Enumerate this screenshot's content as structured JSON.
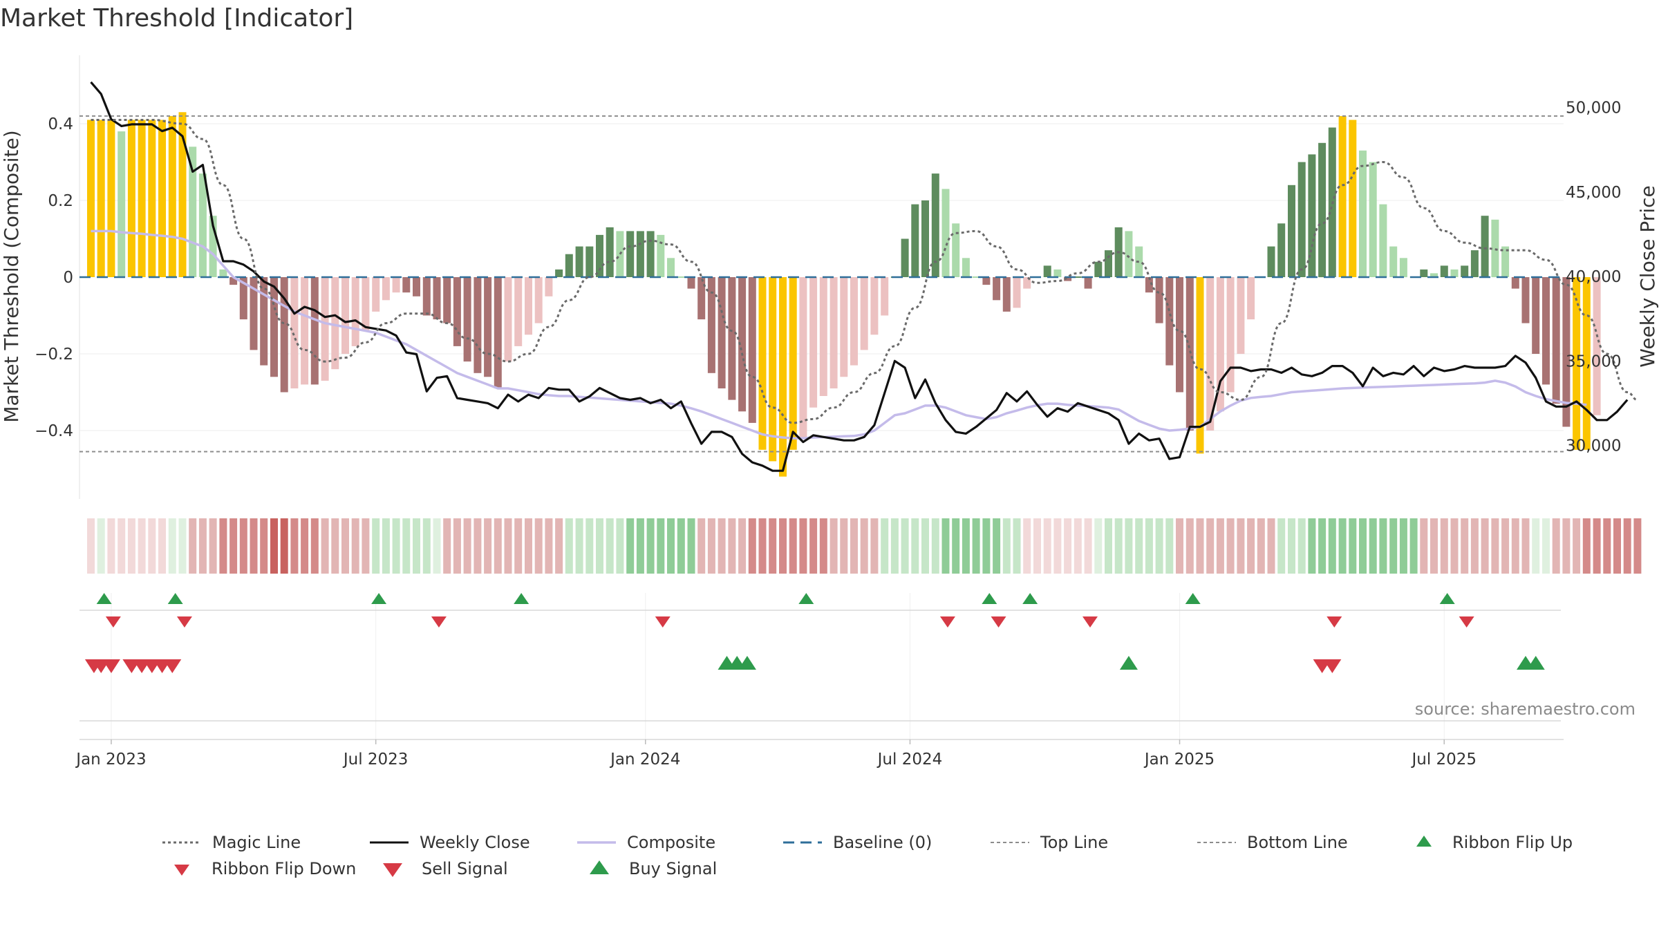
{
  "chart_data": {
    "type": "bar",
    "title": "Market Threshold [Indicator]",
    "ylabel": "Market Threshold (Composite)",
    "y2label": "Weekly Close Price",
    "ylim": [
      -0.58,
      0.58
    ],
    "y2lim": [
      27000,
      53500
    ],
    "x_range_weeks": [
      0,
      144
    ],
    "yticks": [
      {
        "value": 0.4,
        "label": "0.4"
      },
      {
        "value": 0.2,
        "label": "0.2"
      },
      {
        "value": 0,
        "label": "0"
      },
      {
        "value": -0.2,
        "label": "−0.2"
      },
      {
        "value": -0.4,
        "label": "−0.4"
      }
    ],
    "y2ticks": [
      {
        "value": 50000,
        "label": "50,000"
      },
      {
        "value": 45000,
        "label": "45,000"
      },
      {
        "value": 40000,
        "label": "40,000"
      },
      {
        "value": 35000,
        "label": "35,000"
      },
      {
        "value": 30000,
        "label": "30,000"
      }
    ],
    "xticks": [
      {
        "week": 2,
        "label": "Jan 2023"
      },
      {
        "week": 28,
        "label": "Jul 2023"
      },
      {
        "week": 54.5,
        "label": "Jan 2024"
      },
      {
        "week": 80.5,
        "label": "Jul 2024"
      },
      {
        "week": 107,
        "label": "Jan 2025"
      },
      {
        "week": 133,
        "label": "Jul 2025"
      }
    ],
    "top_line": 0.42,
    "bottom_line": -0.455,
    "composite_bars": [
      0.41,
      0.41,
      0.41,
      0.38,
      0.41,
      0.41,
      0.41,
      0.41,
      0.42,
      0.43,
      0.34,
      0.27,
      0.16,
      0.02,
      -0.02,
      -0.11,
      -0.19,
      -0.23,
      -0.26,
      -0.3,
      -0.29,
      -0.28,
      -0.28,
      -0.27,
      -0.24,
      -0.2,
      -0.18,
      -0.14,
      -0.09,
      -0.06,
      -0.04,
      -0.04,
      -0.05,
      -0.1,
      -0.11,
      -0.12,
      -0.18,
      -0.22,
      -0.25,
      -0.26,
      -0.29,
      -0.22,
      -0.18,
      -0.15,
      -0.12,
      -0.05,
      0.02,
      0.06,
      0.08,
      0.08,
      0.11,
      0.13,
      0.12,
      0.12,
      0.12,
      0.12,
      0.11,
      0.05,
      0,
      -0.03,
      -0.11,
      -0.25,
      -0.29,
      -0.32,
      -0.35,
      -0.38,
      -0.45,
      -0.48,
      -0.52,
      -0.45,
      -0.42,
      -0.34,
      -0.31,
      -0.29,
      -0.26,
      -0.23,
      -0.19,
      -0.15,
      -0.1,
      0,
      0.1,
      0.19,
      0.2,
      0.27,
      0.23,
      0.14,
      0.05,
      0,
      -0.02,
      -0.06,
      -0.09,
      -0.08,
      -0.03,
      0,
      0.03,
      0.02,
      -0.01,
      0,
      -0.03,
      0.04,
      0.07,
      0.13,
      0.12,
      0.08,
      -0.04,
      -0.12,
      -0.23,
      -0.3,
      -0.4,
      -0.46,
      -0.4,
      -0.35,
      -0.3,
      -0.2,
      -0.11,
      0,
      0.08,
      0.14,
      0.24,
      0.3,
      0.32,
      0.35,
      0.39,
      0.42,
      0.41,
      0.33,
      0.3,
      0.19,
      0.08,
      0.05,
      0,
      0.02,
      0.01,
      0.03,
      0.02,
      0.03,
      0.07,
      0.16,
      0.15,
      0.08,
      -0.03,
      -0.12,
      -0.2,
      -0.28,
      -0.33,
      -0.39,
      -0.45,
      -0.45,
      -0.36
    ],
    "weekly_close": [
      51500,
      50800,
      49300,
      48900,
      49000,
      49000,
      49000,
      48600,
      48800,
      48300,
      46200,
      46600,
      43000,
      40900,
      40900,
      40700,
      40300,
      39700,
      39400,
      38700,
      37800,
      38200,
      38000,
      37600,
      37700,
      37300,
      37400,
      37000,
      36900,
      36800,
      36500,
      35500,
      35400,
      33200,
      34000,
      34100,
      32800,
      32700,
      32600,
      32500,
      32200,
      33000,
      32600,
      33000,
      32800,
      33400,
      33300,
      33300,
      32600,
      32900,
      33400,
      33100,
      32800,
      32700,
      32800,
      32500,
      32700,
      32200,
      32600,
      31300,
      30100,
      30800,
      30800,
      30500,
      29500,
      29000,
      28800,
      28500,
      28500,
      30800,
      30200,
      30600,
      30500,
      30400,
      30300,
      30300,
      30500,
      31200,
      33100,
      35000,
      34600,
      32800,
      33900,
      32500,
      31500,
      30800,
      30700,
      31100,
      31600,
      32100,
      33100,
      32600,
      33200,
      32400,
      31700,
      32200,
      32000,
      32500,
      32300,
      32100,
      31900,
      31500,
      30100,
      30700,
      30300,
      30400,
      29200,
      29300,
      31100,
      31100,
      31400,
      33800,
      34600,
      34600,
      34400,
      34500,
      34500,
      34300,
      34600,
      34200,
      34100,
      34300,
      34700,
      34700,
      34300,
      33500,
      34600,
      34100,
      34300,
      34200,
      34700,
      34100,
      34600,
      34400,
      34500,
      34700,
      34600,
      34600,
      34600,
      34700,
      35300,
      34900,
      34000,
      32600,
      32300,
      32300,
      32600,
      32100,
      31500,
      31500,
      32000,
      32700
    ],
    "composite_line": [
      0.12,
      0.12,
      0.12,
      0.117,
      0.115,
      0.113,
      0.11,
      0.108,
      0.105,
      0.1,
      0.09,
      0.08,
      0.06,
      0.03,
      0,
      -0.015,
      -0.03,
      -0.045,
      -0.06,
      -0.075,
      -0.09,
      -0.1,
      -0.11,
      -0.12,
      -0.125,
      -0.13,
      -0.135,
      -0.14,
      -0.145,
      -0.155,
      -0.165,
      -0.175,
      -0.19,
      -0.205,
      -0.22,
      -0.235,
      -0.25,
      -0.26,
      -0.27,
      -0.28,
      -0.29,
      -0.29,
      -0.295,
      -0.3,
      -0.305,
      -0.308,
      -0.31,
      -0.31,
      -0.312,
      -0.314,
      -0.316,
      -0.318,
      -0.32,
      -0.322,
      -0.324,
      -0.326,
      -0.328,
      -0.33,
      -0.335,
      -0.342,
      -0.35,
      -0.36,
      -0.37,
      -0.38,
      -0.39,
      -0.4,
      -0.41,
      -0.415,
      -0.418,
      -0.42,
      -0.42,
      -0.418,
      -0.417,
      -0.416,
      -0.415,
      -0.414,
      -0.41,
      -0.4,
      -0.38,
      -0.36,
      -0.355,
      -0.345,
      -0.335,
      -0.335,
      -0.34,
      -0.35,
      -0.36,
      -0.365,
      -0.37,
      -0.365,
      -0.355,
      -0.348,
      -0.34,
      -0.334,
      -0.33,
      -0.33,
      -0.333,
      -0.335,
      -0.336,
      -0.338,
      -0.34,
      -0.345,
      -0.36,
      -0.375,
      -0.385,
      -0.395,
      -0.4,
      -0.398,
      -0.395,
      -0.39,
      -0.37,
      -0.35,
      -0.335,
      -0.322,
      -0.315,
      -0.312,
      -0.31,
      -0.305,
      -0.3,
      -0.298,
      -0.296,
      -0.294,
      -0.292,
      -0.29,
      -0.289,
      -0.288,
      -0.287,
      -0.286,
      -0.285,
      -0.284,
      -0.283,
      -0.282,
      -0.281,
      -0.28,
      -0.279,
      -0.278,
      -0.277,
      -0.275,
      -0.27,
      -0.275,
      -0.285,
      -0.3,
      -0.31,
      -0.318,
      -0.323,
      -0.328,
      -0.33,
      -0.333
    ],
    "magic_line_points": [
      [
        0,
        0.41
      ],
      [
        6,
        0.41
      ],
      [
        9,
        0.4
      ],
      [
        11,
        0.36
      ],
      [
        13,
        0.24
      ],
      [
        15,
        0.1
      ],
      [
        17,
        -0.03
      ],
      [
        19,
        -0.12
      ],
      [
        21,
        -0.19
      ],
      [
        23,
        -0.22
      ],
      [
        25,
        -0.21
      ],
      [
        27,
        -0.17
      ],
      [
        29,
        -0.12
      ],
      [
        31,
        -0.095
      ],
      [
        33,
        -0.095
      ],
      [
        35,
        -0.12
      ],
      [
        37,
        -0.16
      ],
      [
        39,
        -0.2
      ],
      [
        41,
        -0.22
      ],
      [
        43,
        -0.2
      ],
      [
        45,
        -0.13
      ],
      [
        47,
        -0.06
      ],
      [
        49,
        0
      ],
      [
        51,
        0.04
      ],
      [
        53,
        0.08
      ],
      [
        55,
        0.095
      ],
      [
        57,
        0.085
      ],
      [
        59,
        0.04
      ],
      [
        61,
        -0.04
      ],
      [
        63,
        -0.14
      ],
      [
        65,
        -0.26
      ],
      [
        67,
        -0.34
      ],
      [
        69,
        -0.38
      ],
      [
        71,
        -0.37
      ],
      [
        73,
        -0.34
      ],
      [
        75,
        -0.3
      ],
      [
        77,
        -0.25
      ],
      [
        79,
        -0.18
      ],
      [
        81,
        -0.08
      ],
      [
        83,
        0.04
      ],
      [
        85,
        0.115
      ],
      [
        87,
        0.12
      ],
      [
        89,
        0.08
      ],
      [
        91,
        0.02
      ],
      [
        93,
        -0.015
      ],
      [
        95,
        -0.01
      ],
      [
        97,
        0.01
      ],
      [
        99,
        0.04
      ],
      [
        101,
        0.065
      ],
      [
        103,
        0.04
      ],
      [
        105,
        -0.04
      ],
      [
        107,
        -0.14
      ],
      [
        109,
        -0.24
      ],
      [
        111,
        -0.3
      ],
      [
        113,
        -0.32
      ],
      [
        115,
        -0.26
      ],
      [
        117,
        -0.12
      ],
      [
        119,
        0.02
      ],
      [
        121,
        0.14
      ],
      [
        123,
        0.24
      ],
      [
        125,
        0.29
      ],
      [
        127,
        0.3
      ],
      [
        129,
        0.26
      ],
      [
        131,
        0.18
      ],
      [
        133,
        0.12
      ],
      [
        135,
        0.09
      ],
      [
        137,
        0.075
      ],
      [
        139,
        0.07
      ],
      [
        141,
        0.07
      ],
      [
        143,
        0.045
      ],
      [
        145,
        -0.02
      ],
      [
        147,
        -0.1
      ],
      [
        149,
        -0.2
      ],
      [
        151,
        -0.3
      ],
      [
        152,
        -0.32
      ]
    ],
    "ribbon": [
      -1,
      1,
      -1,
      -1,
      -1,
      -1,
      -1,
      -1,
      1,
      1,
      -2,
      -2,
      -2,
      -3,
      -3,
      -3,
      -3,
      -3,
      -4,
      -4,
      -3,
      -3,
      -3,
      -2,
      -2,
      -2,
      -2,
      -2,
      2,
      2,
      2,
      2,
      2,
      2,
      1,
      -2,
      -2,
      -2,
      -2,
      -2,
      -2,
      -2,
      -2,
      -2,
      -2,
      -2,
      -2,
      2,
      2,
      2,
      2,
      2,
      2,
      3,
      3,
      3,
      3,
      3,
      3,
      3,
      -2,
      -2,
      -2,
      -2,
      -2,
      -3,
      -3,
      -3,
      -3,
      -3,
      -3,
      -3,
      -3,
      -2,
      -2,
      -2,
      -2,
      -2,
      2,
      2,
      2,
      2,
      2,
      2,
      3,
      3,
      3,
      3,
      3,
      3,
      2,
      2,
      -1,
      -1,
      -1,
      -1,
      -1,
      -1,
      -1,
      1,
      2,
      2,
      2,
      2,
      2,
      2,
      2,
      -2,
      -2,
      -2,
      -2,
      -2,
      -2,
      -2,
      -2,
      -2,
      -2,
      2,
      2,
      2,
      3,
      3,
      3,
      3,
      3,
      3,
      3,
      3,
      3,
      3,
      3,
      -2,
      -2,
      -2,
      -2,
      -2,
      -2,
      -2,
      -2,
      -2,
      -2,
      -2,
      1,
      1,
      -2,
      -2,
      -2,
      -3,
      -3,
      -3,
      -3,
      -3,
      -3
    ],
    "signals": {
      "ribbon_flip_up": [
        1.3,
        8.3,
        28.3,
        42.3,
        70.3,
        88.3,
        92.3,
        108.3,
        133.3
      ],
      "ribbon_flip_down": [
        2.2,
        9.2,
        34.2,
        56.2,
        84.2,
        89.2,
        98.2,
        122.2,
        135.2
      ],
      "sell_signal": [
        0.3,
        1,
        2,
        4,
        5,
        6,
        7,
        8,
        121,
        122
      ],
      "buy_signal": [
        62.5,
        63.5,
        64.5,
        102,
        141,
        142
      ]
    }
  },
  "legend": [
    {
      "key": "magic",
      "label": "Magic Line"
    },
    {
      "key": "close",
      "label": "Weekly Close"
    },
    {
      "key": "composite",
      "label": "Composite"
    },
    {
      "key": "baseline",
      "label": "Baseline (0)"
    },
    {
      "key": "top",
      "label": "Top Line"
    },
    {
      "key": "bottom",
      "label": "Bottom Line"
    },
    {
      "key": "flipup",
      "label": "Ribbon Flip Up"
    },
    {
      "key": "flipdown",
      "label": "Ribbon Flip Down"
    },
    {
      "key": "sell",
      "label": "Sell Signal"
    },
    {
      "key": "buy",
      "label": "Buy Signal"
    }
  ],
  "source": "source: sharemaestro.com",
  "colors": {
    "gold": "#fbc500",
    "pos_strong": "#5e8c5e",
    "pos_light": "#abdaab",
    "neg_strong": "#a87272",
    "neg_light": "#ecc1c1",
    "close": "#111111",
    "composite": "#c4bbea",
    "baseline": "#2e6e99",
    "magic": "#6a6a6a",
    "ref": "#8c8c8c",
    "up": "#2e9b4c",
    "down": "#d63a45"
  }
}
